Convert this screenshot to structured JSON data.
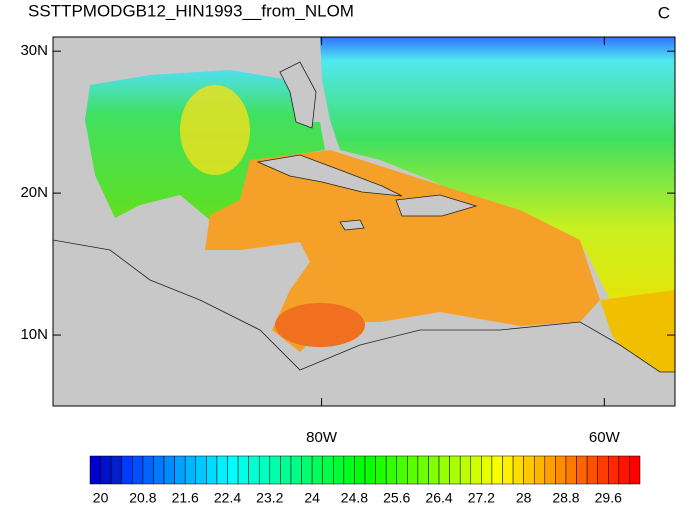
{
  "title": "SSTTPMODGB12_HIN1993__from_NLOM",
  "units": "C",
  "map": {
    "xlim": [
      -99,
      -55
    ],
    "ylim": [
      5,
      31
    ],
    "xticks": [
      {
        "value": -80,
        "label": "80W"
      },
      {
        "value": -60,
        "label": "60W"
      }
    ],
    "yticks": [
      {
        "value": 10,
        "label": "10N"
      },
      {
        "value": 20,
        "label": "20N"
      },
      {
        "value": 30,
        "label": "30N"
      }
    ]
  },
  "colorbar": {
    "labels": [
      20,
      20.8,
      21.6,
      22.4,
      23.2,
      24,
      24.8,
      25.6,
      26.4,
      27.2,
      28,
      28.8,
      29.6
    ]
  }
}
